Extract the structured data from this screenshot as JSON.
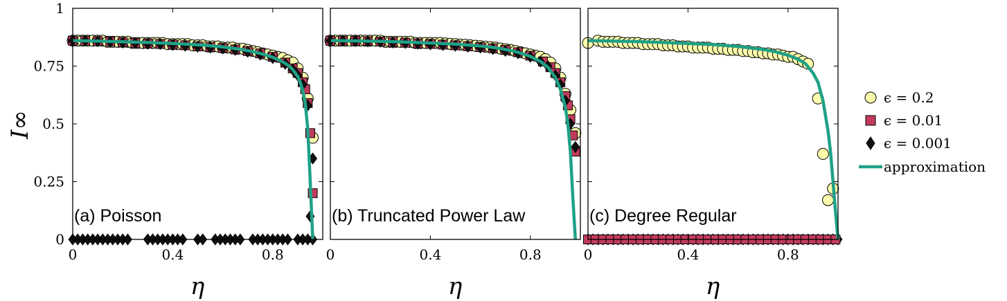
{
  "colors": {
    "eps_0_2": "#fbfbac",
    "eps_0_01": "#c23b5c",
    "eps_0_001": "#111111",
    "approximation": "#1fa187",
    "axis": "#000000"
  },
  "legend": {
    "entries": [
      {
        "key": "eps_0_2",
        "label": "ϵ = 0.2",
        "marker": "circle"
      },
      {
        "key": "eps_0_01",
        "label": "ϵ = 0.01",
        "marker": "square"
      },
      {
        "key": "eps_0_001",
        "label": "ϵ = 0.001",
        "marker": "diamond"
      },
      {
        "key": "approximation",
        "label": "approximation",
        "marker": "line"
      }
    ]
  },
  "chart_data": [
    {
      "type": "scatter",
      "title": "(a) Poisson",
      "xlabel": "η",
      "ylabel": "I∞",
      "xlim": [
        0,
        1
      ],
      "ylim": [
        0,
        1
      ],
      "xticks": [
        0,
        0.4,
        0.8
      ],
      "yticks": [
        0,
        0.25,
        0.5,
        0.75,
        1
      ],
      "xticklabels": [
        "0",
        "0.4",
        "0.8"
      ],
      "yticklabels": [
        "0",
        "0.25",
        "0.5",
        "0.75",
        "1"
      ],
      "approximation": {
        "x": [
          0,
          0.1,
          0.2,
          0.3,
          0.4,
          0.5,
          0.55,
          0.6,
          0.65,
          0.7,
          0.75,
          0.8,
          0.83,
          0.86,
          0.88,
          0.9,
          0.91,
          0.92,
          0.93,
          0.94,
          0.95,
          0.96
        ],
        "y": [
          0.86,
          0.858,
          0.855,
          0.852,
          0.848,
          0.842,
          0.838,
          0.833,
          0.826,
          0.817,
          0.805,
          0.788,
          0.774,
          0.755,
          0.735,
          0.705,
          0.68,
          0.645,
          0.59,
          0.48,
          0.25,
          0.0
        ]
      },
      "series": [
        {
          "name": "ϵ = 0.2",
          "key": "eps_0_2",
          "marker": "circle",
          "x": [
            0,
            0.02,
            0.04,
            0.06,
            0.08,
            0.1,
            0.12,
            0.14,
            0.16,
            0.18,
            0.2,
            0.22,
            0.24,
            0.26,
            0.28,
            0.3,
            0.32,
            0.34,
            0.36,
            0.38,
            0.4,
            0.42,
            0.44,
            0.46,
            0.48,
            0.5,
            0.52,
            0.54,
            0.56,
            0.58,
            0.6,
            0.62,
            0.64,
            0.66,
            0.68,
            0.7,
            0.72,
            0.74,
            0.76,
            0.78,
            0.8,
            0.82,
            0.84,
            0.86,
            0.88,
            0.9,
            0.92,
            0.94,
            0.96
          ],
          "y": [
            0.86,
            0.86,
            0.86,
            0.86,
            0.86,
            0.86,
            0.86,
            0.855,
            0.855,
            0.855,
            0.855,
            0.855,
            0.85,
            0.85,
            0.85,
            0.85,
            0.85,
            0.85,
            0.85,
            0.845,
            0.845,
            0.845,
            0.845,
            0.845,
            0.84,
            0.84,
            0.84,
            0.835,
            0.835,
            0.835,
            0.83,
            0.83,
            0.83,
            0.825,
            0.825,
            0.82,
            0.815,
            0.81,
            0.805,
            0.8,
            0.795,
            0.79,
            0.785,
            0.775,
            0.765,
            0.74,
            0.7,
            0.61,
            0.44
          ]
        },
        {
          "name": "ϵ = 0.01",
          "key": "eps_0_01",
          "marker": "square",
          "x": [
            0,
            0.05,
            0.1,
            0.15,
            0.2,
            0.25,
            0.3,
            0.35,
            0.4,
            0.45,
            0.5,
            0.55,
            0.6,
            0.65,
            0.7,
            0.75,
            0.8,
            0.85,
            0.88,
            0.9,
            0.92,
            0.93,
            0.94,
            0.95,
            0.96
          ],
          "y": [
            0.86,
            0.86,
            0.858,
            0.856,
            0.853,
            0.85,
            0.848,
            0.846,
            0.843,
            0.84,
            0.835,
            0.832,
            0.828,
            0.822,
            0.815,
            0.805,
            0.79,
            0.765,
            0.74,
            0.72,
            0.68,
            0.65,
            0.59,
            0.46,
            0.2
          ]
        },
        {
          "name": "ϵ = 0.001",
          "key": "eps_0_001",
          "marker": "diamond",
          "x": [
            0,
            0.02,
            0.04,
            0.06,
            0.08,
            0.1,
            0.12,
            0.14,
            0.16,
            0.18,
            0.2,
            0.22,
            0.3,
            0.32,
            0.34,
            0.36,
            0.38,
            0.4,
            0.42,
            0.44,
            0.5,
            0.52,
            0.57,
            0.59,
            0.61,
            0.63,
            0.65,
            0.67,
            0.72,
            0.74,
            0.76,
            0.78,
            0.8,
            0.82,
            0.84,
            0.86,
            0.9,
            0.92,
            0.94,
            0.96,
            0.95,
            0.96,
            0,
            0.05,
            0.1,
            0.15,
            0.2,
            0.25,
            0.3,
            0.35,
            0.4,
            0.45,
            0.5,
            0.55,
            0.6,
            0.65,
            0.7,
            0.75,
            0.8,
            0.85,
            0.88,
            0.9,
            0.92,
            0.94
          ],
          "y": [
            0,
            0,
            0,
            0,
            0,
            0,
            0,
            0,
            0,
            0,
            0,
            0,
            0,
            0,
            0,
            0,
            0,
            0,
            0,
            0,
            0,
            0,
            0,
            0,
            0,
            0,
            0,
            0,
            0,
            0,
            0,
            0,
            0,
            0,
            0,
            0,
            0,
            0,
            0,
            0,
            0.1,
            0.35,
            0.86,
            0.86,
            0.858,
            0.855,
            0.852,
            0.85,
            0.847,
            0.845,
            0.842,
            0.838,
            0.834,
            0.83,
            0.826,
            0.82,
            0.812,
            0.8,
            0.785,
            0.76,
            0.735,
            0.71,
            0.67,
            0.58
          ]
        }
      ]
    },
    {
      "type": "scatter",
      "title": "(b) Truncated Power Law",
      "xlabel": "η",
      "ylabel": "",
      "xlim": [
        0,
        1
      ],
      "ylim": [
        0,
        1
      ],
      "xticks": [
        0,
        0.4,
        0.8
      ],
      "yticks": [
        0,
        0.25,
        0.5,
        0.75,
        1
      ],
      "xticklabels": [
        "0",
        "0.4",
        "0.8"
      ],
      "yticklabels": [],
      "approximation": {
        "x": [
          0,
          0.1,
          0.2,
          0.3,
          0.4,
          0.5,
          0.6,
          0.65,
          0.7,
          0.75,
          0.8,
          0.84,
          0.87,
          0.9,
          0.92,
          0.94,
          0.95,
          0.96,
          0.97,
          0.98
        ],
        "y": [
          0.86,
          0.859,
          0.857,
          0.854,
          0.85,
          0.845,
          0.837,
          0.831,
          0.822,
          0.81,
          0.792,
          0.77,
          0.745,
          0.7,
          0.65,
          0.57,
          0.5,
          0.38,
          0.18,
          0.0
        ]
      },
      "series": [
        {
          "name": "ϵ = 0.2",
          "key": "eps_0_2",
          "marker": "circle",
          "x": [
            0,
            0.02,
            0.04,
            0.06,
            0.08,
            0.1,
            0.12,
            0.14,
            0.16,
            0.18,
            0.2,
            0.22,
            0.24,
            0.26,
            0.28,
            0.3,
            0.32,
            0.34,
            0.36,
            0.38,
            0.4,
            0.42,
            0.44,
            0.46,
            0.48,
            0.5,
            0.52,
            0.54,
            0.56,
            0.58,
            0.6,
            0.62,
            0.64,
            0.66,
            0.68,
            0.7,
            0.72,
            0.74,
            0.76,
            0.78,
            0.8,
            0.82,
            0.84,
            0.86,
            0.88,
            0.9,
            0.92,
            0.94,
            0.96,
            0.98
          ],
          "y": [
            0.86,
            0.86,
            0.86,
            0.86,
            0.86,
            0.86,
            0.86,
            0.86,
            0.86,
            0.86,
            0.86,
            0.855,
            0.855,
            0.855,
            0.855,
            0.855,
            0.855,
            0.85,
            0.85,
            0.85,
            0.85,
            0.85,
            0.85,
            0.848,
            0.846,
            0.845,
            0.843,
            0.842,
            0.84,
            0.838,
            0.836,
            0.834,
            0.832,
            0.83,
            0.826,
            0.823,
            0.82,
            0.815,
            0.81,
            0.805,
            0.8,
            0.795,
            0.79,
            0.78,
            0.765,
            0.74,
            0.7,
            0.63,
            0.56,
            0.46
          ]
        },
        {
          "name": "ϵ = 0.01",
          "key": "eps_0_01",
          "marker": "square",
          "x": [
            0,
            0.05,
            0.1,
            0.15,
            0.2,
            0.25,
            0.3,
            0.35,
            0.4,
            0.45,
            0.5,
            0.55,
            0.6,
            0.65,
            0.7,
            0.75,
            0.8,
            0.85,
            0.88,
            0.9,
            0.92,
            0.94,
            0.95,
            0.96,
            0.97,
            0.98
          ],
          "y": [
            0.86,
            0.86,
            0.86,
            0.858,
            0.856,
            0.854,
            0.851,
            0.848,
            0.846,
            0.843,
            0.84,
            0.836,
            0.832,
            0.827,
            0.82,
            0.81,
            0.795,
            0.77,
            0.745,
            0.72,
            0.68,
            0.62,
            0.58,
            0.52,
            0.45,
            0.38
          ]
        },
        {
          "name": "ϵ = 0.001",
          "key": "eps_0_001",
          "marker": "diamond",
          "x": [
            0,
            0.05,
            0.1,
            0.15,
            0.2,
            0.25,
            0.3,
            0.35,
            0.4,
            0.45,
            0.5,
            0.55,
            0.6,
            0.65,
            0.7,
            0.75,
            0.8,
            0.84,
            0.87,
            0.9,
            0.92,
            0.94,
            0.96,
            0.98
          ],
          "y": [
            0.86,
            0.86,
            0.859,
            0.857,
            0.855,
            0.852,
            0.85,
            0.847,
            0.844,
            0.841,
            0.838,
            0.834,
            0.83,
            0.824,
            0.816,
            0.806,
            0.79,
            0.77,
            0.75,
            0.71,
            0.67,
            0.6,
            0.5,
            0.4
          ]
        }
      ]
    },
    {
      "type": "scatter",
      "title": "(c) Degree Regular",
      "xlabel": "η",
      "ylabel": "",
      "xlim": [
        0,
        1
      ],
      "ylim": [
        0,
        1
      ],
      "xticks": [
        0,
        0.4,
        0.8
      ],
      "yticks": [
        0,
        0.25,
        0.5,
        0.75,
        1
      ],
      "xticklabels": [
        "0",
        "0.4",
        "0.8"
      ],
      "yticklabels": [],
      "approximation": {
        "x": [
          0,
          0.1,
          0.2,
          0.3,
          0.4,
          0.5,
          0.6,
          0.7,
          0.75,
          0.8,
          0.84,
          0.87,
          0.9,
          0.92,
          0.94,
          0.96,
          0.97,
          0.98,
          0.99,
          1.0
        ],
        "y": [
          0.86,
          0.858,
          0.856,
          0.852,
          0.848,
          0.843,
          0.835,
          0.822,
          0.812,
          0.797,
          0.78,
          0.76,
          0.72,
          0.68,
          0.6,
          0.47,
          0.38,
          0.25,
          0.12,
          0.0
        ]
      },
      "series": [
        {
          "name": "ϵ = 0.2",
          "key": "eps_0_2",
          "marker": "circle",
          "x": [
            0,
            0.04,
            0.06,
            0.08,
            0.1,
            0.12,
            0.14,
            0.16,
            0.18,
            0.2,
            0.22,
            0.24,
            0.26,
            0.28,
            0.3,
            0.32,
            0.34,
            0.36,
            0.38,
            0.4,
            0.42,
            0.44,
            0.46,
            0.48,
            0.5,
            0.52,
            0.54,
            0.56,
            0.58,
            0.6,
            0.62,
            0.64,
            0.66,
            0.68,
            0.7,
            0.72,
            0.74,
            0.76,
            0.78,
            0.8,
            0.82,
            0.84,
            0.86,
            0.88,
            0.92,
            0.94,
            0.96,
            0.98
          ],
          "y": [
            0.85,
            0.86,
            0.855,
            0.855,
            0.855,
            0.855,
            0.85,
            0.85,
            0.85,
            0.85,
            0.845,
            0.845,
            0.845,
            0.845,
            0.84,
            0.84,
            0.84,
            0.835,
            0.835,
            0.835,
            0.83,
            0.83,
            0.83,
            0.83,
            0.825,
            0.825,
            0.825,
            0.82,
            0.82,
            0.82,
            0.815,
            0.815,
            0.81,
            0.81,
            0.805,
            0.805,
            0.8,
            0.8,
            0.795,
            0.79,
            0.79,
            0.78,
            0.77,
            0.76,
            0.61,
            0.37,
            0.17,
            0.22
          ]
        },
        {
          "name": "ϵ = 0.001",
          "key": "eps_0_001",
          "marker": "diamond",
          "x": [
            0,
            0.02,
            0.04,
            0.06,
            0.08,
            0.1,
            0.12,
            0.14,
            0.16,
            0.18,
            0.2,
            0.22,
            0.24,
            0.26,
            0.28,
            0.3,
            0.32,
            0.34,
            0.36,
            0.38,
            0.4,
            0.42,
            0.44,
            0.46,
            0.48,
            0.5,
            0.52,
            0.54,
            0.56,
            0.58,
            0.6,
            0.62,
            0.64,
            0.66,
            0.68,
            0.7,
            0.72,
            0.74,
            0.76,
            0.78,
            0.8,
            0.82,
            0.84,
            0.86,
            0.88,
            0.9,
            0.92,
            0.94,
            0.96,
            0.98,
            1.0
          ],
          "y": [
            0,
            0,
            0,
            0,
            0,
            0,
            0,
            0,
            0,
            0,
            0,
            0,
            0,
            0,
            0,
            0,
            0,
            0,
            0,
            0,
            0,
            0,
            0,
            0,
            0,
            0,
            0,
            0,
            0,
            0,
            0,
            0,
            0,
            0,
            0,
            0,
            0,
            0,
            0,
            0,
            0,
            0,
            0,
            0,
            0,
            0,
            0,
            0,
            0,
            0,
            0
          ]
        },
        {
          "name": "ϵ = 0.01",
          "key": "eps_0_01",
          "marker": "square",
          "x": [
            0,
            0.03,
            0.06,
            0.09,
            0.12,
            0.15,
            0.18,
            0.21,
            0.24,
            0.27,
            0.3,
            0.33,
            0.36,
            0.39,
            0.42,
            0.45,
            0.48,
            0.51,
            0.54,
            0.57,
            0.6,
            0.63,
            0.66,
            0.69,
            0.72,
            0.75,
            0.78,
            0.81,
            0.84,
            0.87,
            0.9,
            0.93,
            0.96,
            0.99
          ],
          "y": [
            0,
            0,
            0,
            0,
            0,
            0,
            0,
            0,
            0,
            0,
            0,
            0,
            0,
            0,
            0,
            0,
            0,
            0,
            0,
            0,
            0,
            0,
            0,
            0,
            0,
            0,
            0,
            0,
            0,
            0,
            0,
            0,
            0,
            0
          ]
        }
      ]
    }
  ]
}
